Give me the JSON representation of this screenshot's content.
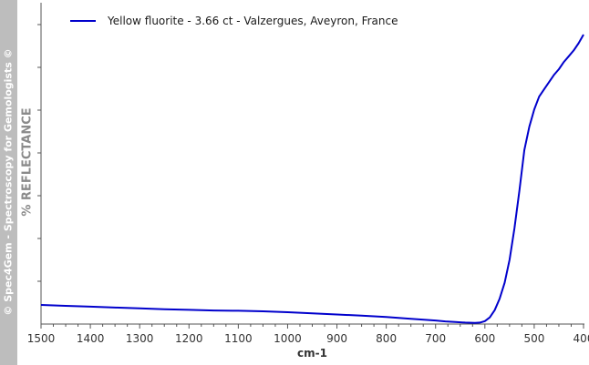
{
  "watermark": "© Spec4Gem - Spectroscopy for Gemologists ©",
  "chart_data": {
    "type": "line",
    "title": "",
    "xlabel": "cm-1",
    "ylabel": "% REFLECTANCE",
    "xlim": [
      1500,
      400
    ],
    "x_reversed": true,
    "x_ticks": [
      "1500",
      "1400",
      "1300",
      "1200",
      "1100",
      "1000",
      "900",
      "800",
      "700",
      "600",
      "500",
      "400"
    ],
    "ylim": [
      0,
      100
    ],
    "y_tick_labels_visible": false,
    "legend": "top-left",
    "grid": false,
    "series": [
      {
        "name": "Yellow fluorite - 3.66 ct - Valzergues, Aveyron, France",
        "color": "#0000cc",
        "x": [
          1500,
          1450,
          1400,
          1350,
          1300,
          1250,
          1200,
          1150,
          1100,
          1050,
          1000,
          950,
          900,
          850,
          800,
          750,
          700,
          680,
          660,
          640,
          620,
          610,
          600,
          590,
          580,
          570,
          560,
          550,
          540,
          530,
          520,
          510,
          500,
          490,
          480,
          470,
          460,
          450,
          440,
          430,
          420,
          410,
          400
        ],
        "y": [
          6.3,
          6.0,
          5.7,
          5.4,
          5.1,
          4.8,
          4.6,
          4.4,
          4.3,
          4.1,
          3.8,
          3.4,
          3.0,
          2.6,
          2.1,
          1.5,
          0.9,
          0.6,
          0.4,
          0.2,
          0.1,
          0.2,
          0.7,
          2.0,
          4.5,
          8.5,
          14.0,
          22.0,
          33.0,
          46.0,
          60.0,
          68.0,
          74.0,
          78.5,
          81.0,
          83.5,
          86.0,
          88.0,
          90.5,
          92.5,
          94.5,
          97.0,
          100.0
        ]
      }
    ]
  }
}
